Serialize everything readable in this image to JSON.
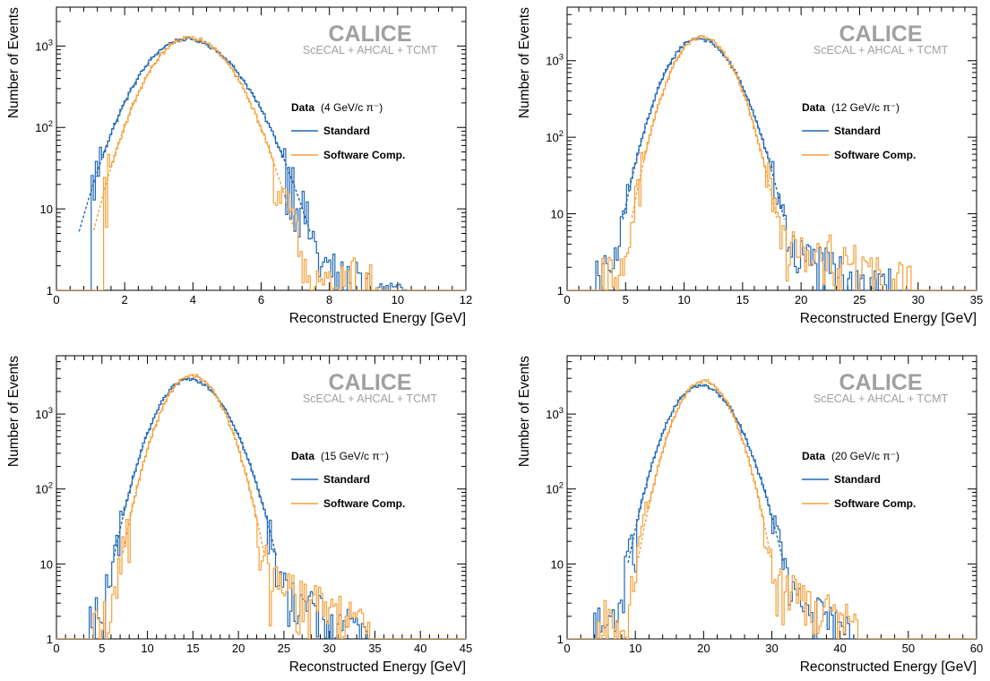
{
  "colors": {
    "standard": "#1f68b5",
    "software_comp": "#f4a03a",
    "watermark": "#a0a0a0",
    "axis": "#000000"
  },
  "chart_data": [
    {
      "type": "line",
      "log_y": true,
      "xlabel": "Reconstructed Energy [GeV]",
      "ylabel": "Number of Events",
      "xlim": [
        0,
        12
      ],
      "ylim": [
        1,
        3000
      ],
      "x_ticks": [
        "0",
        "2",
        "4",
        "6",
        "8",
        "10",
        "12"
      ],
      "y_ticks": [
        "1",
        "10",
        "10^2",
        "10^3"
      ],
      "watermark": {
        "title": "CALICE",
        "subtitle": "ScECAL + AHCAL + TCMT"
      },
      "legend": {
        "title_bold": "Data",
        "title_rest": "(4 GeV/c π⁻)",
        "entries": [
          "Standard",
          "Software Comp."
        ],
        "position": "right"
      },
      "series": [
        {
          "name": "Standard",
          "peak": 3.8,
          "amplitude": 1220,
          "sigma_left": 0.95,
          "sigma_right": 1.1,
          "range": [
            1.0,
            10.3
          ],
          "tail_level": 3.5,
          "tail_start": 6.6
        },
        {
          "name": "Software Comp.",
          "peak": 3.9,
          "amplitude": 1260,
          "sigma_left": 0.85,
          "sigma_right": 0.93,
          "range": [
            1.4,
            9.6
          ],
          "tail_level": 2.5,
          "tail_start": 6.4
        }
      ]
    },
    {
      "type": "line",
      "log_y": true,
      "xlabel": "Reconstructed Energy [GeV]",
      "ylabel": "Number of Events",
      "xlim": [
        0,
        36
      ],
      "ylim": [
        1,
        5000
      ],
      "x_ticks": [
        "0",
        "5",
        "10",
        "15",
        "20",
        "25",
        "30",
        "35"
      ],
      "y_ticks": [
        "1",
        "10",
        "10^2",
        "10^3"
      ],
      "watermark": {
        "title": "CALICE",
        "subtitle": "ScECAL + AHCAL + TCMT"
      },
      "legend": {
        "title_bold": "Data",
        "title_rest": "(12 GeV/c π⁻)",
        "entries": [
          "Standard",
          "Software Comp."
        ],
        "position": "right"
      },
      "series": [
        {
          "name": "Standard",
          "peak": 11.5,
          "amplitude": 1950,
          "sigma_left": 2.0,
          "sigma_right": 2.3,
          "range": [
            2.5,
            28.5
          ],
          "tail_level": 5,
          "tail_start": 16.5
        },
        {
          "name": "Software Comp.",
          "peak": 11.8,
          "amplitude": 2050,
          "sigma_left": 1.85,
          "sigma_right": 2.0,
          "range": [
            3.0,
            30.5
          ],
          "tail_level": 7,
          "tail_start": 16.0
        }
      ]
    },
    {
      "type": "line",
      "log_y": true,
      "xlabel": "Reconstructed Energy [GeV]",
      "ylabel": "Number of Events",
      "xlim": [
        0,
        45
      ],
      "ylim": [
        1,
        6000
      ],
      "x_ticks": [
        "0",
        "5",
        "10",
        "15",
        "20",
        "25",
        "30",
        "35",
        "40",
        "45"
      ],
      "y_ticks": [
        "1",
        "10",
        "10^2",
        "10^3"
      ],
      "watermark": {
        "title": "CALICE",
        "subtitle": "ScECAL + AHCAL + TCMT"
      },
      "legend": {
        "title_bold": "Data",
        "title_rest": "(15 GeV/c π⁻)",
        "entries": [
          "Standard",
          "Software Comp."
        ],
        "position": "right"
      },
      "series": [
        {
          "name": "Standard",
          "peak": 14.6,
          "amplitude": 2950,
          "sigma_left": 2.5,
          "sigma_right": 2.9,
          "range": [
            3.5,
            34.5
          ],
          "tail_level": 6,
          "tail_start": 21.0
        },
        {
          "name": "Software Comp.",
          "peak": 14.9,
          "amplitude": 3250,
          "sigma_left": 2.3,
          "sigma_right": 2.4,
          "range": [
            4.0,
            34.5
          ],
          "tail_level": 8,
          "tail_start": 20.5
        }
      ]
    },
    {
      "type": "line",
      "log_y": true,
      "xlabel": "Reconstructed Energy [GeV]",
      "ylabel": "Number of Events",
      "xlim": [
        0,
        60
      ],
      "ylim": [
        1,
        6000
      ],
      "x_ticks": [
        "0",
        "10",
        "20",
        "30",
        "40",
        "50",
        "60"
      ],
      "y_ticks": [
        "1",
        "10",
        "10^2",
        "10^3"
      ],
      "watermark": {
        "title": "CALICE",
        "subtitle": "ScECAL + AHCAL + TCMT"
      },
      "legend": {
        "title_bold": "Data",
        "title_rest": "(20 GeV/c π⁻)",
        "entries": [
          "Standard",
          "Software Comp."
        ],
        "position": "right"
      },
      "series": [
        {
          "name": "Standard",
          "peak": 19.5,
          "amplitude": 2400,
          "sigma_left": 3.2,
          "sigma_right": 3.7,
          "range": [
            4.0,
            41.5
          ],
          "tail_level": 6,
          "tail_start": 29.0
        },
        {
          "name": "Software Comp.",
          "peak": 20.0,
          "amplitude": 2750,
          "sigma_left": 2.9,
          "sigma_right": 3.0,
          "range": [
            4.5,
            42.5
          ],
          "tail_level": 8,
          "tail_start": 28.0
        }
      ]
    }
  ]
}
